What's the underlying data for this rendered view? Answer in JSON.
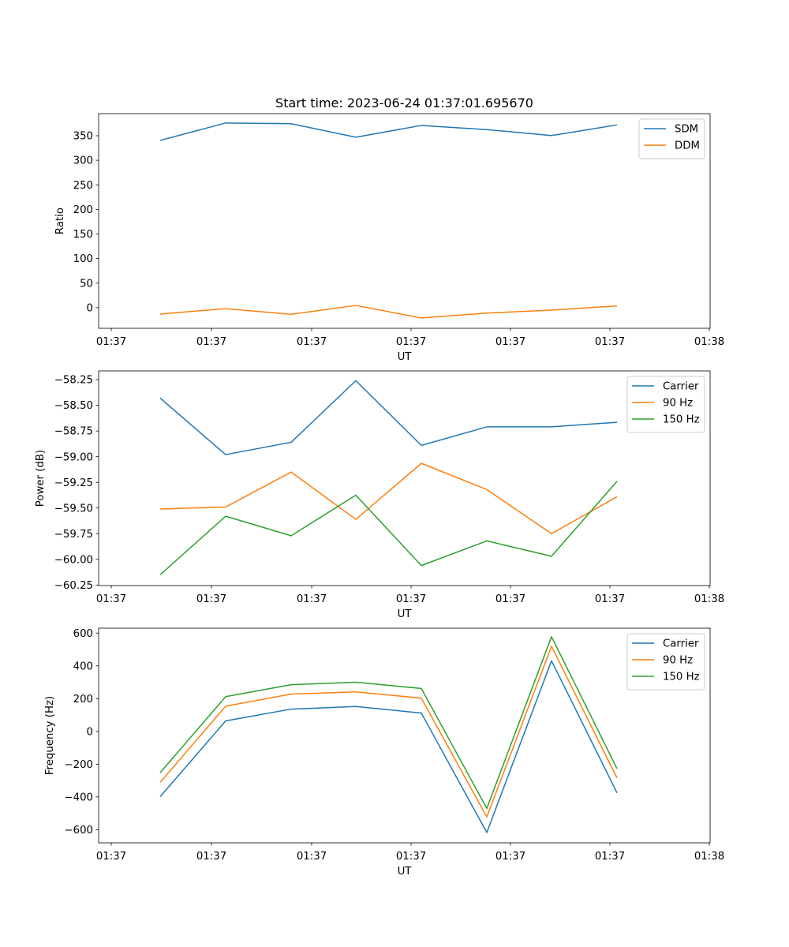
{
  "figure_title": "Start time: 2023-06-24 01:37:01.695670",
  "colors": {
    "c0": "#1f77b4",
    "c1": "#ff7f0e",
    "c2": "#2ca02c"
  },
  "chart_data": [
    {
      "type": "line",
      "title": "Start time: 2023-06-24 01:37:01.695670",
      "xlabel": "UT",
      "ylabel": "Ratio",
      "x_tick_labels": [
        "01:37",
        "01:37",
        "01:37",
        "01:37",
        "01:37",
        "01:37",
        "01:37",
        "01:38"
      ],
      "y_ticks": [
        0,
        50,
        100,
        150,
        200,
        250,
        300,
        350
      ],
      "y_tick_labels": [
        "0",
        "50",
        "100",
        "150",
        "200",
        "250",
        "300",
        "350"
      ],
      "ylim": [
        -42,
        395
      ],
      "grid": false,
      "legend_position": "top-right",
      "series": [
        {
          "name": "SDM",
          "values": [
            340.5,
            376,
            374.5,
            347,
            371,
            362.5,
            350.5,
            372
          ]
        },
        {
          "name": "DDM",
          "values": [
            -13,
            -2,
            -13.5,
            4.5,
            -21,
            -11,
            -5,
            3.5
          ]
        }
      ]
    },
    {
      "type": "line",
      "title": "",
      "xlabel": "UT",
      "ylabel": "Power (dB)",
      "x_tick_labels": [
        "01:37",
        "01:37",
        "01:37",
        "01:37",
        "01:37",
        "01:37",
        "01:37",
        "01:38"
      ],
      "y_ticks": [
        -60.25,
        -60.0,
        -59.75,
        -59.5,
        -59.25,
        -59.0,
        -58.75,
        -58.5,
        -58.25
      ],
      "y_tick_labels": [
        "−60.25",
        "−60.00",
        "−59.75",
        "−59.50",
        "−59.25",
        "−59.00",
        "−58.75",
        "−58.50",
        "−58.25"
      ],
      "ylim": [
        -60.255,
        -58.165
      ],
      "grid": false,
      "legend_position": "top-right",
      "series": [
        {
          "name": "Carrier",
          "values": [
            -58.43,
            -58.98,
            -58.86,
            -58.26,
            -58.89,
            -58.71,
            -58.71,
            -58.665
          ]
        },
        {
          "name": "90 Hz",
          "values": [
            -59.51,
            -59.49,
            -59.15,
            -59.61,
            -59.065,
            -59.32,
            -59.75,
            -59.39
          ]
        },
        {
          "name": "150 Hz",
          "values": [
            -60.15,
            -59.58,
            -59.77,
            -59.375,
            -60.06,
            -59.82,
            -59.97,
            -59.24
          ]
        }
      ]
    },
    {
      "type": "line",
      "title": "",
      "xlabel": "UT",
      "ylabel": "Frequency (Hz)",
      "x_tick_labels": [
        "01:37",
        "01:37",
        "01:37",
        "01:37",
        "01:37",
        "01:37",
        "01:37",
        "01:38"
      ],
      "y_ticks": [
        -600,
        -400,
        -200,
        0,
        200,
        400,
        600
      ],
      "y_tick_labels": [
        "−600",
        "−400",
        "−200",
        "0",
        "200",
        "400",
        "600"
      ],
      "ylim": [
        -680,
        630
      ],
      "grid": false,
      "legend_position": "top-right",
      "series": [
        {
          "name": "Carrier",
          "values": [
            -398,
            64,
            136,
            152,
            112,
            -617,
            431,
            -375
          ]
        },
        {
          "name": "90 Hz",
          "values": [
            -311,
            154,
            228,
            241,
            203,
            -522,
            520,
            -284
          ]
        },
        {
          "name": "150 Hz",
          "values": [
            -252,
            212,
            285,
            300,
            262,
            -470,
            578,
            -227
          ]
        }
      ]
    }
  ]
}
